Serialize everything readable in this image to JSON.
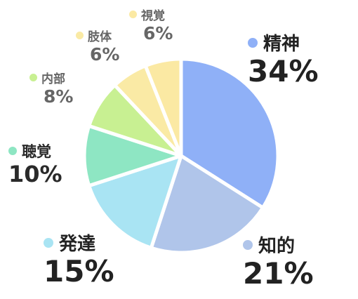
{
  "chart_data": {
    "type": "pie",
    "title": "",
    "legend": "none",
    "slices": [
      {
        "label": "精神",
        "value": 34,
        "value_label": "34%",
        "color": "#8fb0f7"
      },
      {
        "label": "知的",
        "value": 21,
        "value_label": "21%",
        "color": "#b0c5ea"
      },
      {
        "label": "発達",
        "value": 15,
        "value_label": "15%",
        "color": "#a9e4f3"
      },
      {
        "label": "聴覚",
        "value": 10,
        "value_label": "10%",
        "color": "#8ee6c3"
      },
      {
        "label": "内部",
        "value": 8,
        "value_label": "8%",
        "color": "#c8f092"
      },
      {
        "label": "肢体",
        "value": 6,
        "value_label": "6%",
        "color": "#faeaa5"
      },
      {
        "label": "視覚",
        "value": 6,
        "value_label": "6%",
        "color": "#fbe9a3"
      }
    ]
  }
}
